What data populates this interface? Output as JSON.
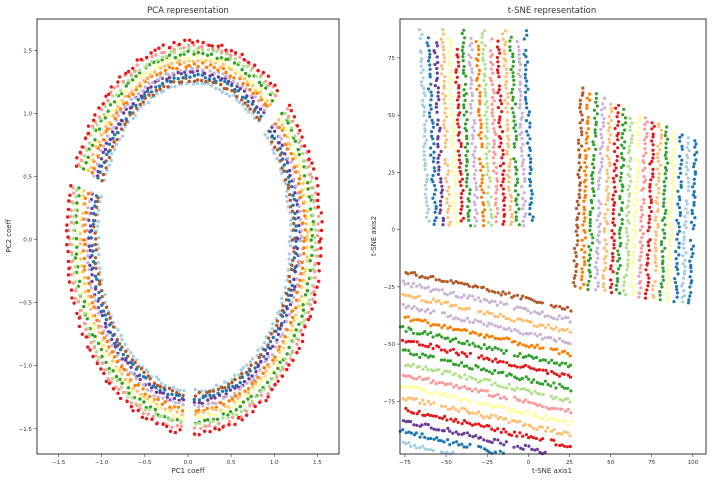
{
  "chart_data": [
    {
      "type": "scatter",
      "title": "PCA representation",
      "xlabel": "PC1 coeff",
      "ylabel": "PC2 coeff",
      "xlim": [
        -1.75,
        1.75
      ],
      "ylim": [
        -1.7,
        1.75
      ],
      "xticks": [
        -1.5,
        -1.0,
        -0.5,
        0.0,
        0.5,
        1.0,
        1.5
      ],
      "xtick_labels": [
        "−1.5",
        "−1.0",
        "−0.5",
        "0.0",
        "0.5",
        "1.0",
        "1.5"
      ],
      "yticks": [
        -1.5,
        -1.0,
        -0.5,
        0.0,
        0.5,
        1.0,
        1.5
      ],
      "ytick_labels": [
        "−1.5",
        "−1.0",
        "−0.5",
        "0.0",
        "0.5",
        "1.0",
        "1.5"
      ],
      "grid": false,
      "legend": "none",
      "rings": {
        "center": [
          0.07,
          0.02
        ],
        "radius_x_range": [
          1.12,
          1.47
        ],
        "radius_y_range": [
          1.22,
          1.55
        ]
      },
      "gaps_deg": [
        45,
        162,
        268
      ]
    },
    {
      "type": "scatter",
      "title": "t-SNE representation",
      "xlabel": "t-SNE axis1",
      "ylabel": "t-SNE axis2",
      "xlim": [
        -78,
        108
      ],
      "ylim": [
        -98,
        92
      ],
      "xticks": [
        -75,
        -50,
        -25,
        0,
        25,
        50,
        75,
        100
      ],
      "xtick_labels": [
        "−75",
        "−50",
        "−25",
        "0",
        "25",
        "50",
        "75",
        "100"
      ],
      "yticks": [
        -75,
        -50,
        -25,
        0,
        25,
        50,
        75
      ],
      "ytick_labels": [
        "−75",
        "−50",
        "−25",
        "0",
        "25",
        "50",
        "75"
      ],
      "grid": false,
      "legend": "none",
      "clusters": [
        {
          "name_hint": "top-left",
          "x_range": [
            -75,
            5
          ],
          "y_range": [
            0,
            90
          ]
        },
        {
          "name_hint": "right",
          "x_range": [
            25,
            105
          ],
          "y_range": [
            -35,
            65
          ]
        },
        {
          "name_hint": "bottom-left",
          "x_range": [
            -78,
            25
          ],
          "y_range": [
            -98,
            -15
          ]
        }
      ]
    }
  ],
  "palette": [
    "#a6cee3",
    "#1f78b4",
    "#b2df8a",
    "#33a02c",
    "#fb9a99",
    "#e31a1c",
    "#fdbf6f",
    "#ff7f00",
    "#cab2d6",
    "#6a3d9a",
    "#ffff99",
    "#b15928"
  ]
}
